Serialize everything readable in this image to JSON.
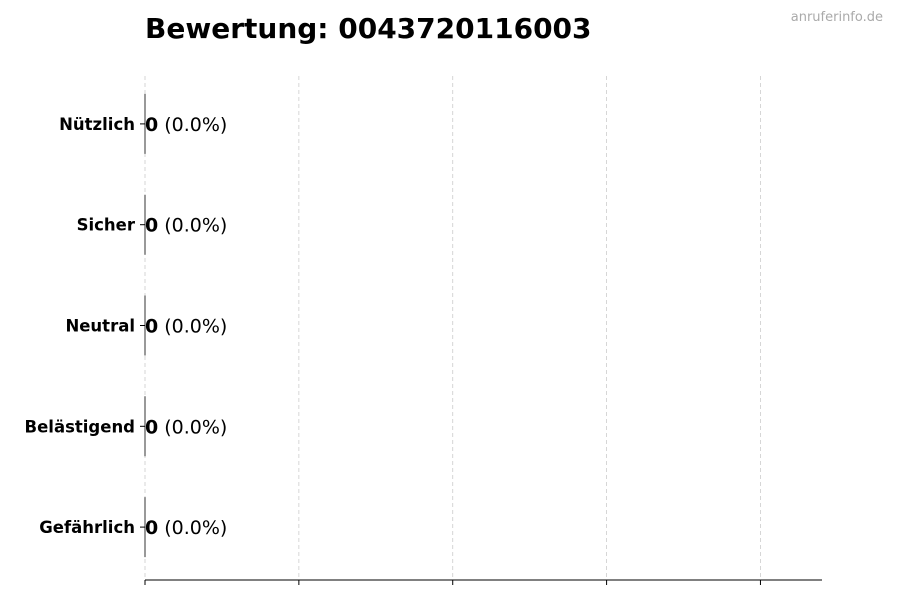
{
  "watermark": "anruferinfo.de",
  "chart_data": {
    "type": "bar",
    "orientation": "horizontal",
    "title": "Bewertung: 0043720116003",
    "categories": [
      "Nützlich",
      "Sicher",
      "Neutral",
      "Belästigend",
      "Gefährlich"
    ],
    "values": [
      0,
      0,
      0,
      0,
      0
    ],
    "value_labels": [
      "0",
      "0",
      "0",
      "0",
      "0"
    ],
    "percent_labels": [
      "(0.0%)",
      "(0.0%)",
      "(0.0%)",
      "(0.0%)",
      "(0.0%)"
    ],
    "xlabel": "",
    "ylabel": "",
    "xlim": [
      0,
      4.4
    ],
    "xticks": [
      0,
      1,
      2,
      3,
      4
    ],
    "xtick_labels_shown": false,
    "grid": "x, dashed",
    "legend": "none",
    "colors": {
      "bar_edge": "#333333",
      "grid": "#cccccc",
      "watermark": "#aaaaaa"
    }
  }
}
